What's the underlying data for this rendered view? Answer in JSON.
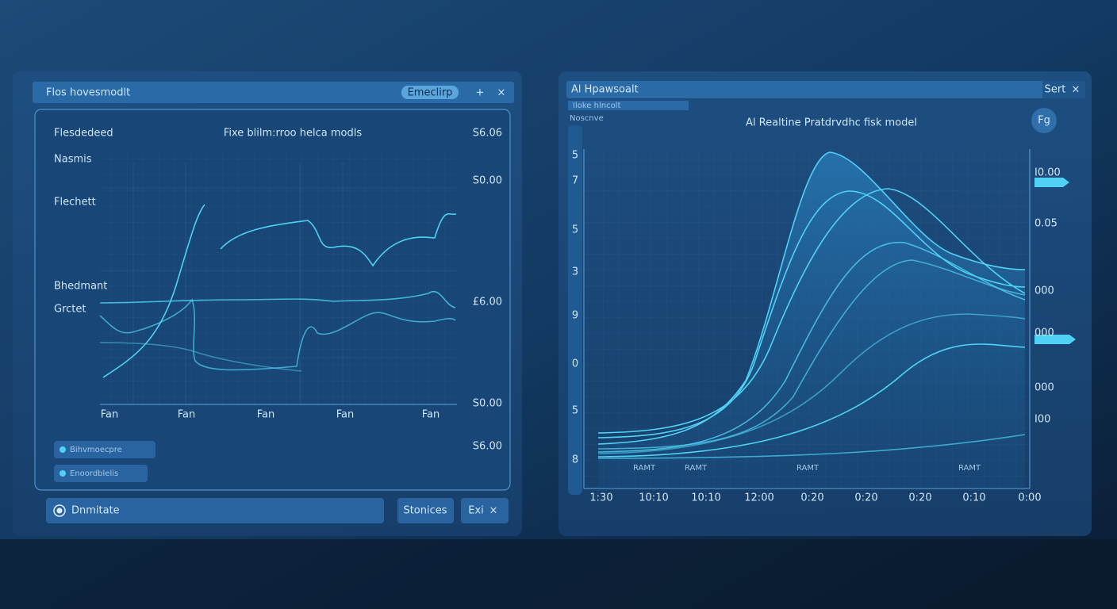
{
  "left_window": {
    "title": "Flos hovesmodlt",
    "button": "Emeclirp",
    "add": "+",
    "close": "×",
    "chart": {
      "title": "Fixe blilm:rroo helca modls",
      "row_labels": [
        "Flesdedeed",
        "Nasmis",
        "Flechett",
        "Bhedmant",
        "Grctet"
      ],
      "right_labels": [
        "S6.06",
        "S0.00",
        "£6.00",
        "S0.00",
        "S6.00"
      ],
      "x_labels": [
        "Fan",
        "Fan",
        "Fan",
        "Fan",
        "Fan"
      ]
    },
    "legend": [
      "Bihvmoecpre",
      "Enoordblelis"
    ],
    "status": "Dnmitate",
    "buttons": [
      "Stonices",
      "Exi"
    ],
    "button_close": "×"
  },
  "right_window": {
    "title": "Al Hpawsoalt",
    "button": "Sert",
    "close": "×",
    "strip": [
      "Iloke hlncolt",
      "Noscnve"
    ],
    "chart": {
      "title": "Al Realtine Pratdrvdhc fisk model",
      "badge": "Fg",
      "left_labels": [
        "5",
        "7",
        "5",
        "3",
        "9",
        "0",
        "5",
        "8"
      ],
      "right_labels": [
        "I0.00",
        "0.05",
        "000",
        "000",
        "000",
        "I00"
      ],
      "x_labels": [
        "1:30",
        "10:10",
        "10:10",
        "12:00",
        "0:20",
        "0:20",
        "0:20",
        "0:10",
        "0:00"
      ],
      "x_minor": [
        "RAMT",
        "RAMT",
        "RAMT",
        "RAMT"
      ]
    }
  }
}
